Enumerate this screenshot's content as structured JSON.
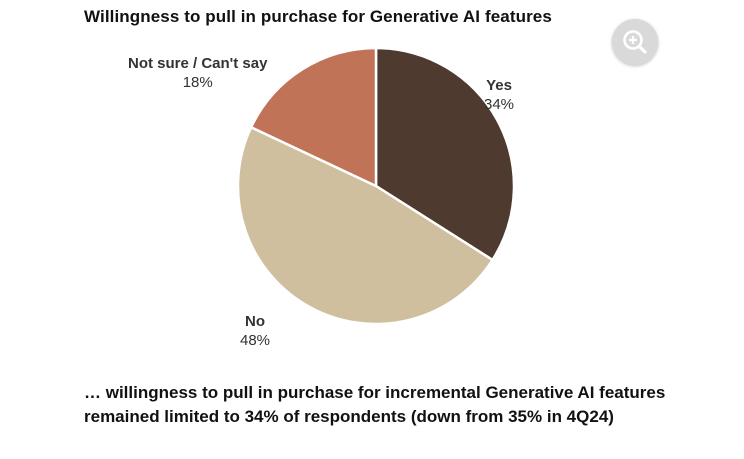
{
  "chart_data": {
    "type": "pie",
    "title": "Willingness to pull in purchase for Generative AI features",
    "slices": [
      {
        "label": "Yes",
        "value": 34,
        "value_label": "34%",
        "color": "#4e3a2e"
      },
      {
        "label": "No",
        "value": 48,
        "value_label": "48%",
        "color": "#d0bf9e"
      },
      {
        "label": "Not sure / Can't say",
        "value": 18,
        "value_label": "18%",
        "color": "#c07357"
      }
    ],
    "slice_border_color": "#ffffff"
  },
  "caption": "… willingness to pull in purchase for incremental Generative AI features remained limited to 34% of respondents (down from 35% in 4Q24)",
  "zoom_button": {
    "icon": "zoom-in-icon"
  }
}
